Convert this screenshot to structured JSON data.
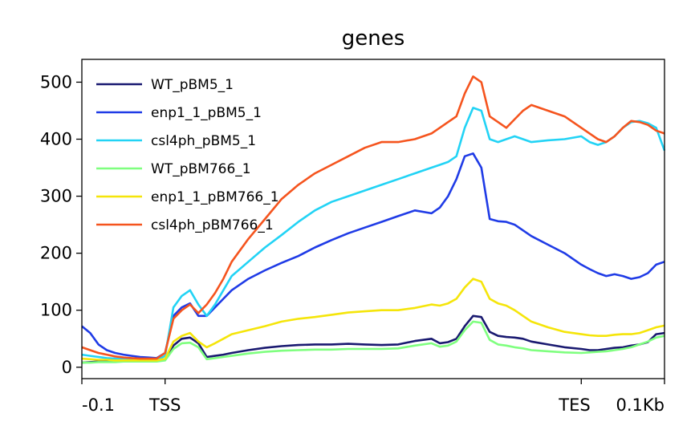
{
  "chart_data": {
    "type": "line",
    "title": "genes",
    "xlabel": "",
    "ylabel": "",
    "x_ticks": [
      {
        "x": 0,
        "label": "-0.1"
      },
      {
        "x": 10,
        "label": "TSS"
      },
      {
        "x": 60,
        "label": "TES"
      },
      {
        "x": 70,
        "label": "0.1Kb"
      }
    ],
    "xlim": [
      0,
      70
    ],
    "ylim": [
      -20,
      540
    ],
    "y_ticks": [
      0,
      100,
      200,
      300,
      400,
      500
    ],
    "grid": false,
    "legend_position": "top-left",
    "x": [
      0,
      1,
      2,
      3,
      4,
      5,
      6,
      7,
      8,
      9,
      10,
      11,
      12,
      13,
      14,
      15,
      16,
      17,
      18,
      20,
      22,
      24,
      26,
      28,
      30,
      32,
      34,
      36,
      38,
      40,
      42,
      43,
      44,
      45,
      46,
      47,
      48,
      49,
      50,
      51,
      52,
      53,
      54,
      56,
      58,
      60,
      61,
      62,
      63,
      64,
      65,
      66,
      67,
      68,
      69,
      70
    ],
    "series": [
      {
        "name": "WT_pBM5_1",
        "color": "#191970",
        "values": [
          8,
          9,
          10,
          10,
          11,
          11,
          11,
          12,
          12,
          12,
          14,
          38,
          50,
          52,
          42,
          18,
          20,
          22,
          25,
          30,
          34,
          37,
          39,
          40,
          40,
          41,
          40,
          39,
          40,
          46,
          50,
          42,
          44,
          50,
          72,
          90,
          88,
          62,
          55,
          53,
          52,
          50,
          45,
          40,
          35,
          32,
          30,
          30,
          32,
          34,
          35,
          38,
          40,
          44,
          58,
          60
        ]
      },
      {
        "name": "enp1_1_pBM5_1",
        "color": "#1f3be6",
        "values": [
          72,
          60,
          40,
          30,
          25,
          22,
          20,
          18,
          17,
          16,
          25,
          90,
          105,
          112,
          90,
          90,
          105,
          120,
          135,
          155,
          170,
          183,
          195,
          210,
          223,
          235,
          245,
          255,
          265,
          275,
          270,
          280,
          300,
          330,
          370,
          375,
          350,
          260,
          256,
          255,
          250,
          240,
          230,
          215,
          200,
          180,
          172,
          165,
          160,
          163,
          160,
          155,
          158,
          165,
          180,
          185
        ]
      },
      {
        "name": "csl4ph_pBM5_1",
        "color": "#22d3f5",
        "values": [
          22,
          20,
          18,
          16,
          15,
          14,
          13,
          13,
          12,
          12,
          20,
          105,
          125,
          135,
          110,
          90,
          110,
          135,
          160,
          185,
          210,
          232,
          255,
          275,
          290,
          300,
          310,
          320,
          330,
          340,
          350,
          355,
          360,
          370,
          420,
          455,
          450,
          400,
          395,
          400,
          405,
          400,
          395,
          398,
          400,
          405,
          395,
          390,
          395,
          405,
          420,
          430,
          432,
          428,
          420,
          380
        ]
      },
      {
        "name": "WT_pBM766_1",
        "color": "#7fff7f",
        "values": [
          8,
          8,
          9,
          9,
          9,
          10,
          10,
          10,
          10,
          10,
          12,
          32,
          42,
          43,
          35,
          14,
          16,
          18,
          20,
          24,
          27,
          29,
          30,
          31,
          31,
          32,
          32,
          32,
          33,
          38,
          42,
          36,
          38,
          45,
          65,
          80,
          78,
          48,
          40,
          38,
          35,
          33,
          30,
          28,
          26,
          25,
          26,
          27,
          28,
          30,
          32,
          35,
          40,
          45,
          52,
          55
        ]
      },
      {
        "name": "enp1_1_pBM766_1",
        "color": "#f5e50a",
        "values": [
          15,
          14,
          13,
          13,
          12,
          12,
          12,
          12,
          12,
          12,
          15,
          45,
          55,
          60,
          45,
          35,
          42,
          50,
          58,
          65,
          72,
          80,
          85,
          88,
          92,
          96,
          98,
          100,
          100,
          104,
          110,
          108,
          112,
          120,
          140,
          155,
          150,
          120,
          112,
          108,
          100,
          90,
          80,
          70,
          62,
          58,
          56,
          55,
          55,
          57,
          58,
          58,
          60,
          65,
          70,
          73
        ]
      },
      {
        "name": "csl4ph_pBM766_1",
        "color": "#f5541e",
        "values": [
          35,
          30,
          25,
          22,
          19,
          17,
          16,
          15,
          15,
          15,
          25,
          85,
          100,
          110,
          95,
          110,
          130,
          155,
          185,
          225,
          260,
          295,
          320,
          340,
          355,
          370,
          385,
          395,
          395,
          400,
          410,
          420,
          430,
          440,
          480,
          510,
          500,
          440,
          430,
          420,
          435,
          450,
          460,
          450,
          440,
          420,
          410,
          400,
          395,
          405,
          420,
          432,
          430,
          425,
          415,
          410
        ]
      }
    ]
  }
}
